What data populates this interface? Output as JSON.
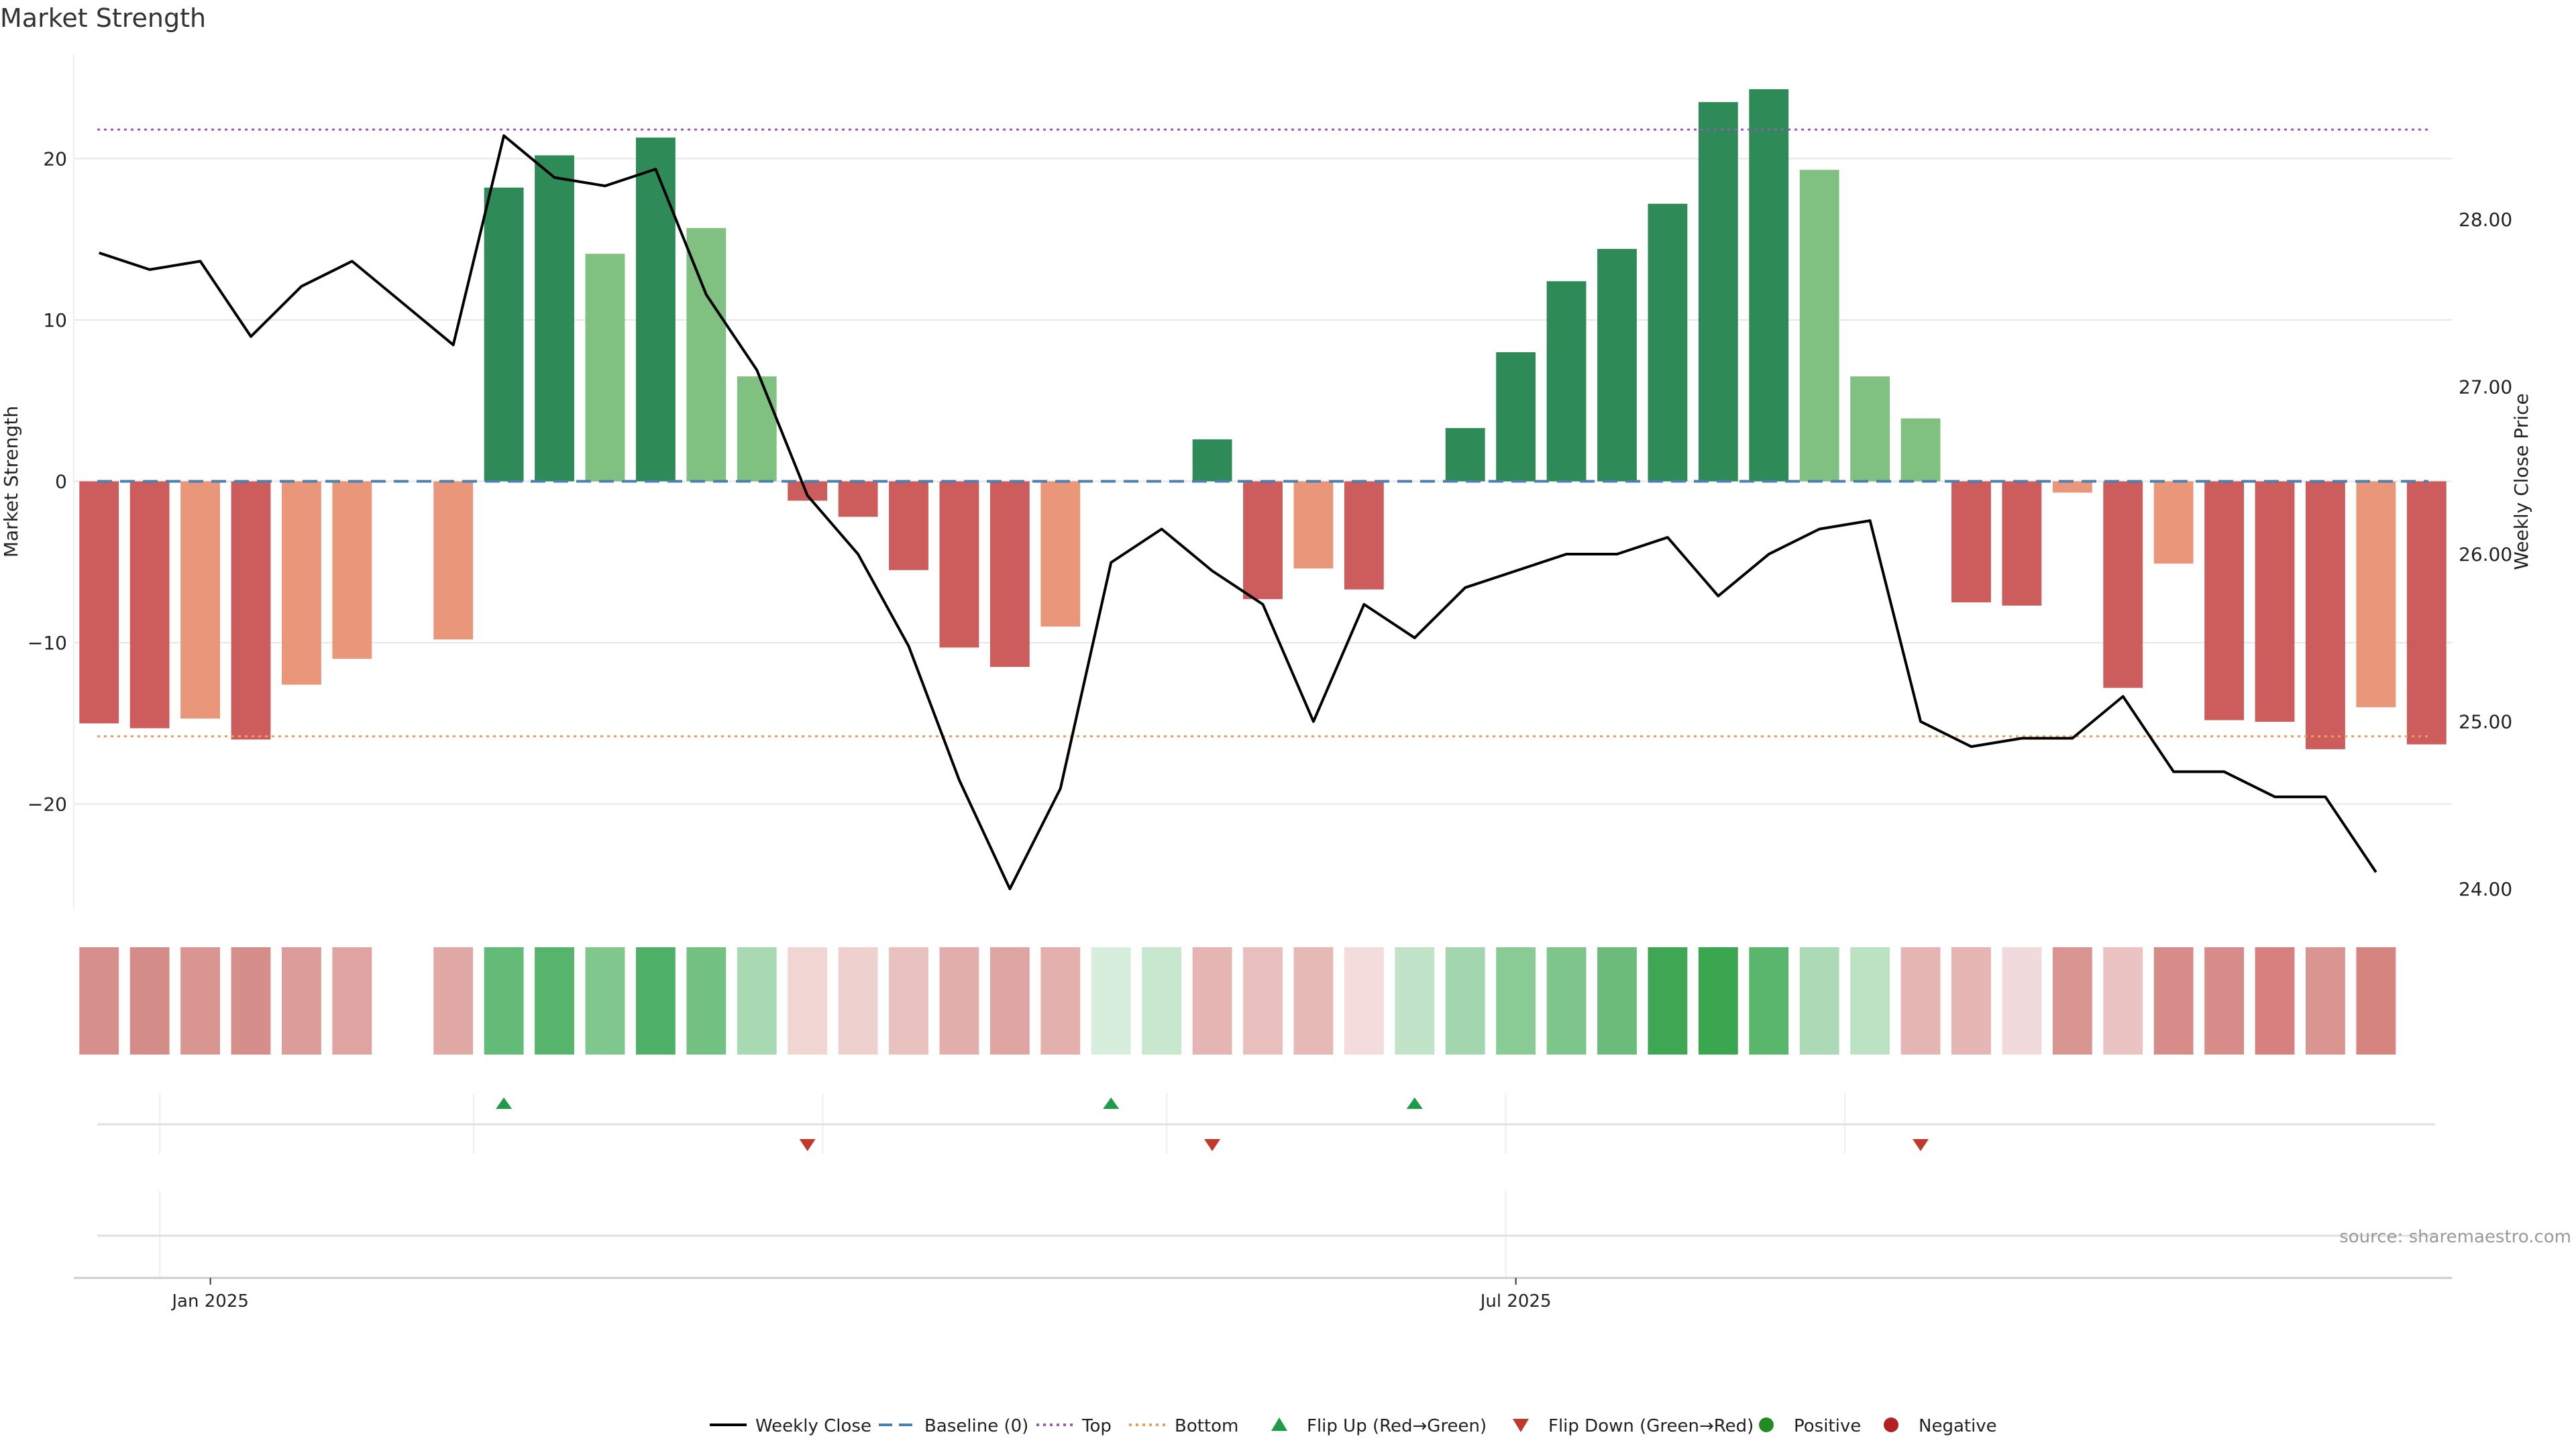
{
  "chart_data": {
    "type": "bar",
    "title": "Market Strength",
    "ylabel": "Market Strength",
    "y2label": "Weekly Close Price",
    "ylim": [
      -26.5,
      26.5
    ],
    "y2lim": [
      23.88,
      28.99
    ],
    "yticks": [
      20,
      10,
      0,
      -10,
      -20
    ],
    "yticklabels": [
      "20",
      "10",
      "0",
      "−10",
      "−20"
    ],
    "y2ticks": [
      28,
      27,
      26,
      25,
      24
    ],
    "y2ticklabels": [
      "28.00",
      "27.00",
      "26.00",
      "25.00",
      "24.00"
    ],
    "xtick_labels": [
      "Jan 2025",
      "Jul 2025"
    ],
    "xtick_positions": [
      2.7,
      28.5
    ],
    "top_line": 21.8,
    "bottom_line": -15.8,
    "baseline": 0,
    "values": [
      -15,
      -15.3,
      -14.7,
      -16,
      -12.6,
      -11,
      null,
      -9.8,
      18.2,
      20.2,
      14.1,
      21.3,
      15.7,
      6.5,
      -1.2,
      -2.2,
      -5.5,
      -10.3,
      -11.5,
      -9,
      null,
      null,
      2.6,
      -7.3,
      -5.4,
      -6.7,
      null,
      3.3,
      8,
      12.4,
      14.4,
      17.2,
      23.5,
      24.3,
      19.3,
      6.5,
      3.9,
      -7.5,
      -7.7,
      -0.7,
      -12.8,
      -5.1,
      -14.8,
      -14.9,
      -16.6,
      -14,
      -16.3
    ],
    "bar_colors": [
      "#cd5c5c",
      "#cd5c5c",
      "#e9967a",
      "#cd5c5c",
      "#e9967a",
      "#e9967a",
      null,
      "#e9967a",
      "#2e8b57",
      "#2e8b57",
      "#80c080",
      "#2e8b57",
      "#80c080",
      "#80c080",
      "#cd5c5c",
      "#cd5c5c",
      "#cd5c5c",
      "#cd5c5c",
      "#cd5c5c",
      "#e9967a",
      null,
      null,
      "#2e8b57",
      "#cd5c5c",
      "#e9967a",
      "#cd5c5c",
      null,
      "#2e8b57",
      "#2e8b57",
      "#2e8b57",
      "#2e8b57",
      "#2e8b57",
      "#2e8b57",
      "#2e8b57",
      "#80c080",
      "#80c080",
      "#80c080",
      "#cd5c5c",
      "#cd5c5c",
      "#e9967a",
      "#cd5c5c",
      "#e9967a",
      "#cd5c5c",
      "#cd5c5c",
      "#cd5c5c",
      "#e9967a",
      "#cd5c5c"
    ],
    "weekly_close": [
      27.8,
      27.7,
      27.75,
      27.3,
      27.6,
      27.75,
      27.5,
      27.25,
      28.5,
      28.25,
      28.2,
      28.3,
      27.55,
      27.1,
      26.35,
      26.0,
      25.45,
      24.65,
      24.0,
      24.6,
      25.95,
      26.15,
      25.9,
      25.7,
      25.0,
      25.7,
      25.5,
      25.8,
      25.9,
      26.0,
      26.0,
      26.1,
      25.75,
      26.0,
      26.15,
      26.2,
      25.0,
      24.85,
      24.9,
      24.9,
      25.15,
      24.7,
      24.7,
      24.55,
      24.55,
      24.1
    ],
    "heat_strip": [
      {
        "color": "#d78f8c"
      },
      {
        "color": "#d48c88"
      },
      {
        "color": "#d99592"
      },
      {
        "color": "#d68e8b"
      },
      {
        "color": "#dc9d9a"
      },
      {
        "color": "#dfa3a1"
      },
      null,
      {
        "color": "#e1a9a6"
      },
      {
        "color": "#64bb78"
      },
      {
        "color": "#57b46d"
      },
      {
        "color": "#80c78d"
      },
      {
        "color": "#4fb067"
      },
      {
        "color": "#74c184"
      },
      {
        "color": "#a9d9b3"
      },
      {
        "color": "#f0d5d3"
      },
      {
        "color": "#eed1cf"
      },
      {
        "color": "#e9c2c0"
      },
      {
        "color": "#e2aeab"
      },
      {
        "color": "#dfa5a3"
      },
      {
        "color": "#e3b0ae"
      },
      {
        "color": "#d7eedc"
      },
      {
        "color": "#c8e7cf"
      },
      {
        "color": "#e5b5b3"
      },
      {
        "color": "#e8bfbd"
      },
      {
        "color": "#e6b8b6"
      },
      {
        "color": "#f3dcdb"
      },
      {
        "color": "#c1e3c8"
      },
      {
        "color": "#a3d5ae"
      },
      {
        "color": "#89cb95"
      },
      {
        "color": "#7dc58a"
      },
      {
        "color": "#6bbb7b"
      },
      {
        "color": "#3fa754"
      },
      {
        "color": "#3aa650"
      },
      {
        "color": "#5ab56d"
      },
      {
        "color": "#acd9b6"
      },
      {
        "color": "#bce2c4"
      },
      {
        "color": "#e5b5b3"
      },
      {
        "color": "#e5b6b4"
      },
      {
        "color": "#f1dadb"
      },
      {
        "color": "#d99592"
      },
      {
        "color": "#eac3c2"
      },
      {
        "color": "#d78c89"
      },
      {
        "color": "#d78c89"
      },
      {
        "color": "#d6817f"
      },
      {
        "color": "#da9591"
      },
      {
        "color": "#d6847f"
      }
    ],
    "flip_up": [
      8,
      20,
      26
    ],
    "flip_down": [
      14,
      22,
      36
    ],
    "source": "source: sharemaestro.com",
    "legend": [
      {
        "label": "Weekly Close",
        "kind": "line",
        "color": "#000000"
      },
      {
        "label": "Baseline (0)",
        "kind": "dash",
        "color": "#4a7fb0"
      },
      {
        "label": "Top",
        "kind": "dot",
        "color": "#9b59b6"
      },
      {
        "label": "Bottom",
        "kind": "dot",
        "color": "#f39c5a"
      },
      {
        "label": "Flip Up (Red→Green)",
        "kind": "tri-up",
        "color": "#1e9c4a"
      },
      {
        "label": "Flip Down (Green→Red)",
        "kind": "tri-down",
        "color": "#c0392b"
      },
      {
        "label": "Positive",
        "kind": "dot-marker",
        "color": "#228b22"
      },
      {
        "label": "Negative",
        "kind": "dot-marker",
        "color": "#b22222"
      }
    ]
  }
}
